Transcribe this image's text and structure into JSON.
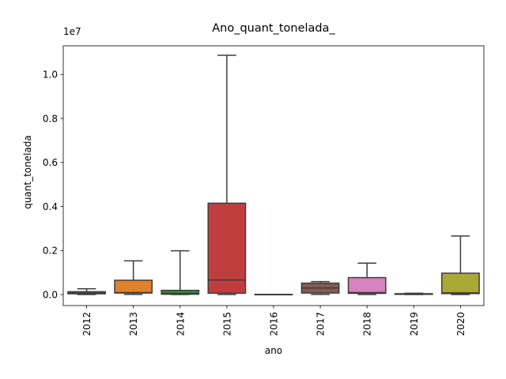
{
  "chart_data": {
    "type": "box",
    "title": "Ano_quant_tonelada_",
    "xlabel": "ano",
    "ylabel": "quant_tonelada",
    "y_offset_label": "1e7",
    "y_scale": 10000000,
    "ylim": [
      -0.05,
      1.13
    ],
    "y_ticks": [
      0.0,
      0.2,
      0.4,
      0.6,
      0.8,
      1.0
    ],
    "y_tick_labels": [
      "0.0",
      "0.2",
      "0.4",
      "0.6",
      "0.8",
      "1.0"
    ],
    "grid": false,
    "categories": [
      "2012",
      "2013",
      "2014",
      "2015",
      "2016",
      "2017",
      "2018",
      "2019",
      "2020"
    ],
    "colors": [
      "#3274a1",
      "#e1812c",
      "#3a923a",
      "#c03d3e",
      "#9372b2",
      "#845b53",
      "#d684bd",
      "#7f7f7f",
      "#a9aa35"
    ],
    "median_color": "#3d3d3d",
    "boxes": [
      {
        "category": "2012",
        "whisker_low": 0.0003,
        "q1": 0.0035,
        "median": 0.007,
        "q3": 0.013,
        "whisker_high": 0.026
      },
      {
        "category": "2013",
        "whisker_low": 0.0005,
        "q1": 0.007,
        "median": 0.009,
        "q3": 0.065,
        "whisker_high": 0.153
      },
      {
        "category": "2014",
        "whisker_low": 0.0002,
        "q1": 0.0015,
        "median": 0.006,
        "q3": 0.019,
        "whisker_high": 0.199
      },
      {
        "category": "2015",
        "whisker_low": 0.0003,
        "q1": 0.006,
        "median": 0.066,
        "q3": 0.415,
        "whisker_high": 1.087
      },
      {
        "category": "2016",
        "whisker_low": 0.0,
        "q1": 0.0003,
        "median": 0.0005,
        "q3": 0.0008,
        "whisker_high": 0.0012
      },
      {
        "category": "2017",
        "whisker_low": 0.0008,
        "q1": 0.007,
        "median": 0.03,
        "q3": 0.052,
        "whisker_high": 0.059
      },
      {
        "category": "2018",
        "whisker_low": 0.0004,
        "q1": 0.0055,
        "median": 0.009,
        "q3": 0.077,
        "whisker_high": 0.143
      },
      {
        "category": "2019",
        "whisker_low": 0.0002,
        "q1": 0.001,
        "median": 0.002,
        "q3": 0.004,
        "whisker_high": 0.006
      },
      {
        "category": "2020",
        "whisker_low": 0.0004,
        "q1": 0.0045,
        "median": 0.008,
        "q3": 0.097,
        "whisker_high": 0.266
      }
    ]
  }
}
